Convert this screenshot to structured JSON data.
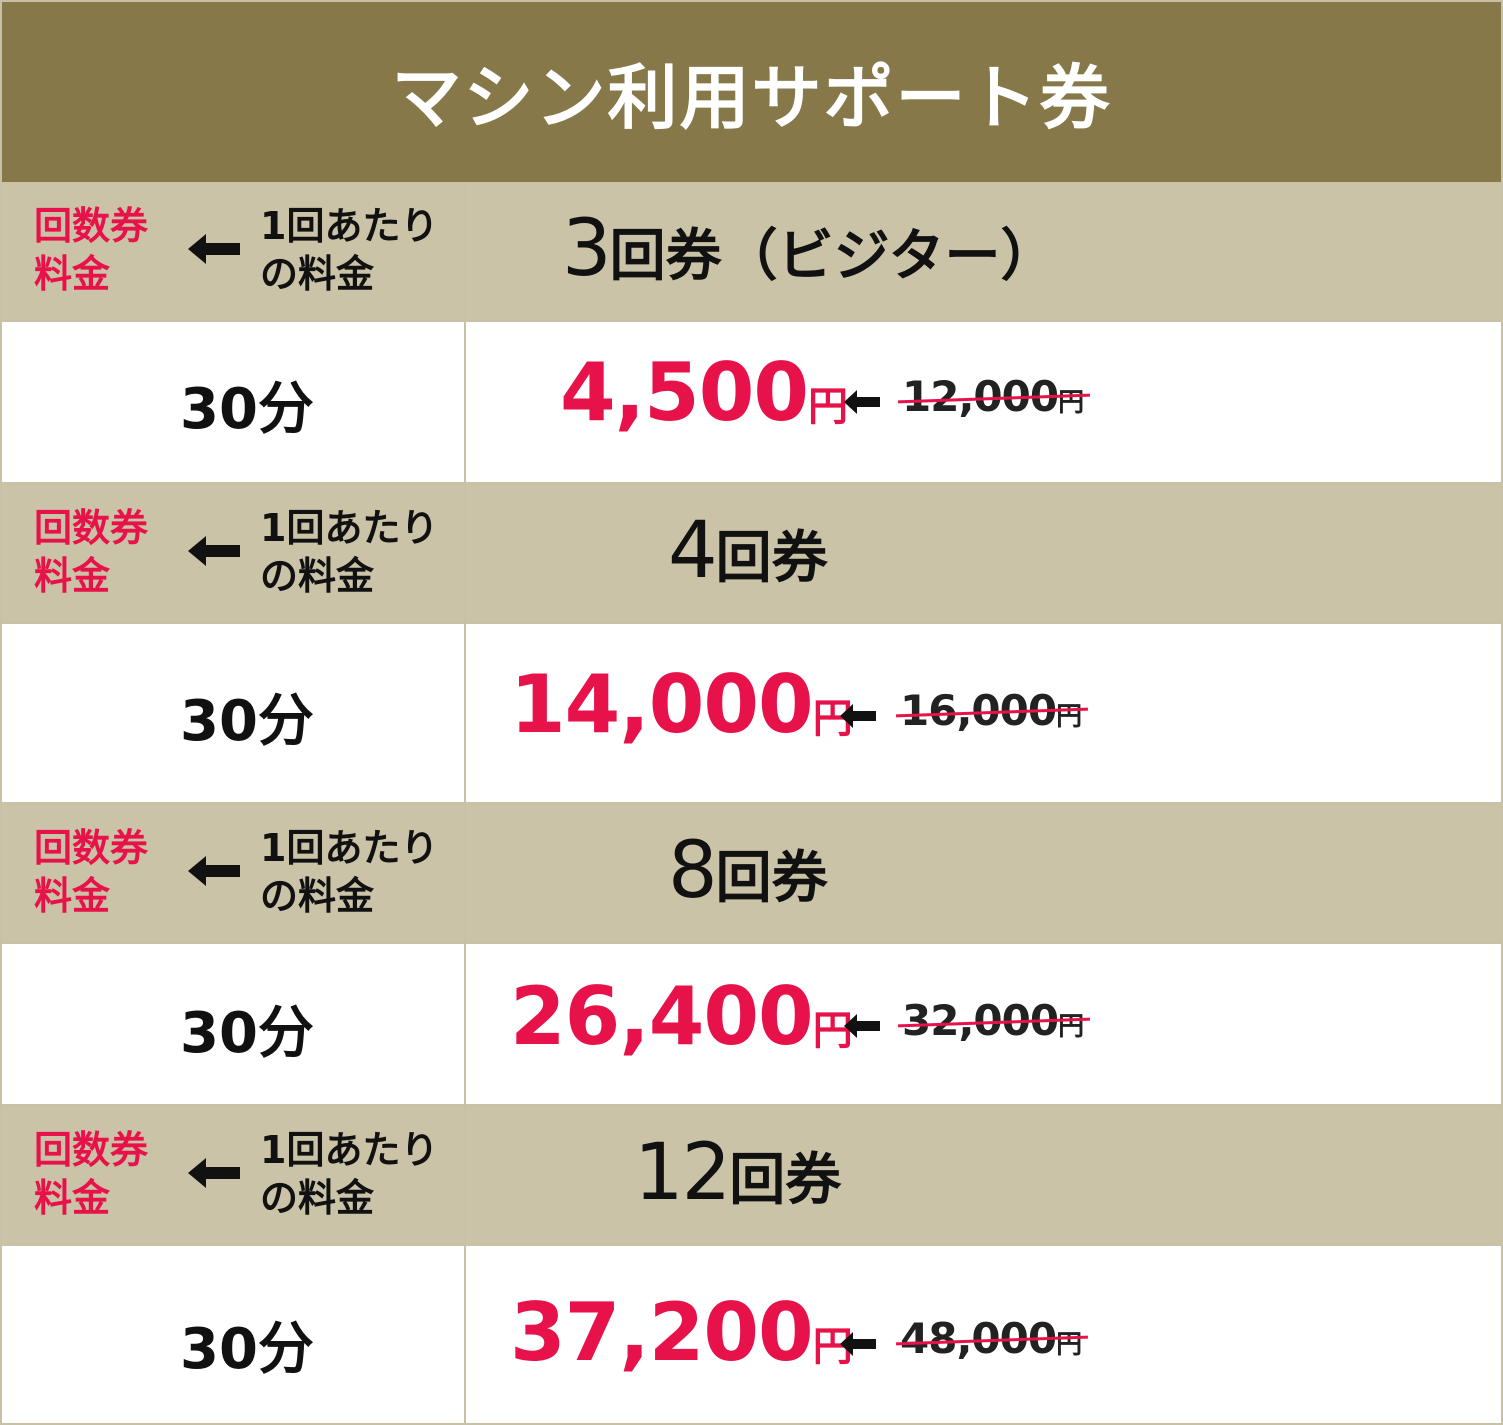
{
  "title": "マシン利用サポート券",
  "header_labels": {
    "ticket_fee": [
      "回数券",
      "料金"
    ],
    "per_use_fee": [
      "1回あたり",
      "の料金"
    ]
  },
  "tickets": [
    {
      "count": "3",
      "suffix": "回券（ビジター）",
      "duration": "30分",
      "price": "4,500",
      "price_unit": "円",
      "original_price": "12,000",
      "original_unit": "円"
    },
    {
      "count": "4",
      "suffix": "回券",
      "duration": "30分",
      "price": "14,000",
      "price_unit": "円",
      "original_price": "16,000",
      "original_unit": "円"
    },
    {
      "count": "8",
      "suffix": "回券",
      "duration": "30分",
      "price": "26,400",
      "price_unit": "円",
      "original_price": "32,000",
      "original_unit": "円"
    },
    {
      "count": "12",
      "suffix": "回券",
      "duration": "30分",
      "price": "37,200",
      "price_unit": "円",
      "original_price": "48,000",
      "original_unit": "円"
    }
  ],
  "icons": {
    "arrow": "arrow-left-icon"
  },
  "colors": {
    "title_bg": "#87784a",
    "header_bg": "#cbc3a7",
    "accent_red": "#e8124a",
    "text": "#111111"
  }
}
